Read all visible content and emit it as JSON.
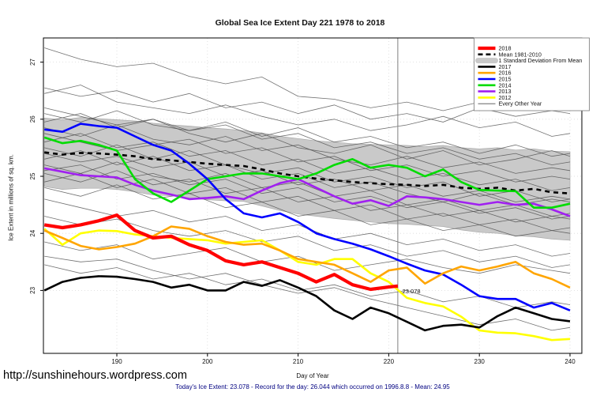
{
  "page": {
    "title": "Global Sea Ice Extent Day 221 1978 to 2018",
    "url": "http://sunshinehours.wordpress.com",
    "footer_note": "Today's Ice Extent: 23.078  - Record for the day: 26.044 which occurred on 1996.8.8  - Mean: 24.95"
  },
  "chart_data": {
    "type": "line",
    "title": "Global Sea Ice Extent Day 221 1978 to 2018",
    "xlabel": "Day of Year",
    "ylabel": "Ice Extent in millions of sq. km.",
    "xlim": [
      182,
      241
    ],
    "ylim": [
      21.9,
      27.4
    ],
    "x_ticks": [
      190,
      200,
      210,
      220,
      230,
      240
    ],
    "y_ticks": [
      23,
      24,
      25,
      26,
      27
    ],
    "grid": true,
    "legend_position": "top-right",
    "vline_day": 221,
    "annotation": {
      "text": "23.078",
      "day": 221.5,
      "value": 22.95,
      "color": "#FF3300"
    },
    "days": [
      182,
      184,
      186,
      188,
      190,
      192,
      194,
      196,
      198,
      200,
      202,
      204,
      206,
      208,
      210,
      212,
      214,
      216,
      218,
      220,
      222,
      224,
      226,
      228,
      230,
      232,
      234,
      236,
      238,
      240
    ],
    "band": {
      "name": "1 Standard Deviation From Mean",
      "color": "#C9C9C9",
      "upper": [
        26.02,
        25.99,
        26.03,
        26.01,
        25.99,
        25.97,
        25.93,
        25.9,
        25.88,
        25.85,
        25.83,
        25.8,
        25.76,
        25.7,
        25.66,
        25.62,
        25.6,
        25.57,
        25.56,
        25.55,
        25.54,
        25.52,
        25.54,
        25.5,
        25.48,
        25.5,
        25.46,
        25.48,
        25.44,
        25.43
      ],
      "lower": [
        24.82,
        24.77,
        24.79,
        24.79,
        24.77,
        24.73,
        24.67,
        24.66,
        24.62,
        24.59,
        24.57,
        24.56,
        24.48,
        24.4,
        24.34,
        24.3,
        24.26,
        24.23,
        24.2,
        24.17,
        24.16,
        24.14,
        24.12,
        24.06,
        24.02,
        24.0,
        23.96,
        23.94,
        23.9,
        23.88
      ]
    },
    "mean": {
      "name": "Mean 1981-2010",
      "color": "#000000",
      "width": 2.6,
      "dash": "6,5",
      "values": [
        25.42,
        25.38,
        25.41,
        25.4,
        25.38,
        25.35,
        25.3,
        25.28,
        25.25,
        25.22,
        25.2,
        25.18,
        25.12,
        25.05,
        25.0,
        24.96,
        24.93,
        24.9,
        24.88,
        24.86,
        24.85,
        24.83,
        24.85,
        24.8,
        24.78,
        24.8,
        24.75,
        24.78,
        24.72,
        24.7
      ]
    },
    "series": [
      {
        "name": "2013",
        "color": "#A020F0",
        "width": 2.6,
        "values": [
          25.14,
          25.08,
          25.02,
          25.0,
          24.98,
          24.85,
          24.75,
          24.68,
          24.6,
          24.62,
          24.65,
          24.6,
          24.75,
          24.88,
          24.95,
          24.8,
          24.65,
          24.52,
          24.58,
          24.48,
          24.65,
          24.63,
          24.6,
          24.55,
          24.5,
          24.55,
          24.5,
          24.52,
          24.42,
          24.3
        ]
      },
      {
        "name": "2014",
        "color": "#00DC00",
        "width": 2.6,
        "values": [
          25.68,
          25.58,
          25.62,
          25.55,
          25.45,
          24.95,
          24.7,
          24.55,
          24.75,
          24.95,
          25.0,
          25.05,
          25.05,
          25.0,
          24.95,
          25.05,
          25.2,
          25.3,
          25.15,
          25.2,
          25.15,
          25.0,
          25.12,
          24.9,
          24.76,
          24.75,
          24.74,
          24.45,
          24.45,
          24.52
        ]
      },
      {
        "name": "2015",
        "color": "#0000FF",
        "width": 2.6,
        "values": [
          25.82,
          25.78,
          25.92,
          25.88,
          25.85,
          25.7,
          25.55,
          25.45,
          25.22,
          24.95,
          24.6,
          24.35,
          24.28,
          24.35,
          24.2,
          24.0,
          23.9,
          23.82,
          23.72,
          23.6,
          23.47,
          23.35,
          23.28,
          23.1,
          22.9,
          22.85,
          22.85,
          22.7,
          22.78,
          22.65
        ]
      },
      {
        "name": "2012",
        "color": "#FFFF00",
        "width": 2.6,
        "values": [
          24.08,
          23.8,
          24.0,
          24.05,
          24.04,
          23.98,
          23.95,
          23.92,
          23.9,
          23.88,
          23.82,
          23.85,
          23.88,
          23.7,
          23.5,
          23.45,
          23.55,
          23.55,
          23.3,
          23.15,
          22.87,
          22.78,
          22.72,
          22.54,
          22.3,
          22.26,
          22.25,
          22.2,
          22.13,
          22.15
        ]
      },
      {
        "name": "2016",
        "color": "#FFA500",
        "width": 2.6,
        "values": [
          24.05,
          23.92,
          23.78,
          23.72,
          23.76,
          23.82,
          23.95,
          24.12,
          24.08,
          23.95,
          23.85,
          23.8,
          23.82,
          23.7,
          23.55,
          23.5,
          23.45,
          23.3,
          23.15,
          23.35,
          23.4,
          23.12,
          23.3,
          23.42,
          23.35,
          23.42,
          23.5,
          23.3,
          23.2,
          23.05
        ]
      },
      {
        "name": "2017",
        "color": "#000000",
        "width": 2.6,
        "values": [
          23.0,
          23.15,
          23.22,
          23.25,
          23.24,
          23.2,
          23.15,
          23.05,
          23.1,
          23.0,
          23.0,
          23.15,
          23.08,
          23.18,
          23.05,
          22.9,
          22.65,
          22.5,
          22.7,
          22.6,
          22.45,
          22.3,
          22.38,
          22.4,
          22.35,
          22.55,
          22.7,
          22.6,
          22.5,
          22.46
        ]
      },
      {
        "name": "2018",
        "color": "#FF0000",
        "width": 4.2,
        "x": [
          182,
          184,
          186,
          188,
          190,
          192,
          194,
          196,
          198,
          200,
          202,
          204,
          206,
          208,
          210,
          212,
          214,
          216,
          218,
          220,
          221
        ],
        "values": [
          24.15,
          24.1,
          24.15,
          24.22,
          24.32,
          24.05,
          23.92,
          23.95,
          23.8,
          23.7,
          23.52,
          23.45,
          23.5,
          23.4,
          23.3,
          23.15,
          23.28,
          23.1,
          23.02,
          23.06,
          23.078
        ]
      }
    ],
    "other_years": {
      "name": "Every Other Year",
      "color": "#4d4d4d",
      "width": 0.8,
      "x": [
        182,
        186,
        190,
        194,
        198,
        202,
        206,
        210,
        214,
        218,
        222,
        226,
        230,
        234,
        238,
        240
      ],
      "lines": [
        [
          27.25,
          27.05,
          26.92,
          26.98,
          26.75,
          26.62,
          26.74,
          26.4,
          26.35,
          26.2,
          26.3,
          26.15,
          26.3,
          26.2,
          26.45,
          26.4
        ],
        [
          26.55,
          26.4,
          26.5,
          26.3,
          26.45,
          26.2,
          26.3,
          26.1,
          26.25,
          26.0,
          26.1,
          25.95,
          26.2,
          26.05,
          26.15,
          26.1
        ],
        [
          26.45,
          26.6,
          26.3,
          26.2,
          26.1,
          26.25,
          26.05,
          25.9,
          26.0,
          25.8,
          25.9,
          26.05,
          25.85,
          25.95,
          25.7,
          25.75
        ],
        [
          26.2,
          26.05,
          25.9,
          26.0,
          25.8,
          25.9,
          25.65,
          25.75,
          25.5,
          25.6,
          25.4,
          25.5,
          25.3,
          25.4,
          25.2,
          25.25
        ],
        [
          26.1,
          25.95,
          26.15,
          25.9,
          25.8,
          25.95,
          25.7,
          25.85,
          25.6,
          25.7,
          25.5,
          25.6,
          25.4,
          25.55,
          25.35,
          25.4
        ],
        [
          25.95,
          26.1,
          25.85,
          26.0,
          25.75,
          25.6,
          25.75,
          25.5,
          25.4,
          25.55,
          25.3,
          25.45,
          25.2,
          25.3,
          25.45,
          25.35
        ],
        [
          25.85,
          25.7,
          25.9,
          25.65,
          25.55,
          25.7,
          25.45,
          25.55,
          25.3,
          25.2,
          25.35,
          25.15,
          25.25,
          25.05,
          25.15,
          25.1
        ],
        [
          25.75,
          25.6,
          25.45,
          25.55,
          25.65,
          25.4,
          25.5,
          25.25,
          25.35,
          25.1,
          25.2,
          25.0,
          25.1,
          24.9,
          25.0,
          24.95
        ],
        [
          25.6,
          25.75,
          25.5,
          25.6,
          25.35,
          25.45,
          25.2,
          25.3,
          25.05,
          25.15,
          24.95,
          25.05,
          24.85,
          24.95,
          24.75,
          24.8
        ],
        [
          25.5,
          25.35,
          25.55,
          25.3,
          25.45,
          25.2,
          25.05,
          25.15,
          24.9,
          25.0,
          24.8,
          24.9,
          24.65,
          24.75,
          24.55,
          24.6
        ],
        [
          25.4,
          25.25,
          25.35,
          25.15,
          25.25,
          25.0,
          25.1,
          24.85,
          24.95,
          24.75,
          24.85,
          24.65,
          24.75,
          24.55,
          24.65,
          24.6
        ],
        [
          25.3,
          25.45,
          25.2,
          25.35,
          25.1,
          25.2,
          24.95,
          25.05,
          24.8,
          24.9,
          24.7,
          24.55,
          24.7,
          24.5,
          24.6,
          24.55
        ],
        [
          25.2,
          25.05,
          25.25,
          25.0,
          24.9,
          25.05,
          24.8,
          24.9,
          24.65,
          24.75,
          24.5,
          24.6,
          24.4,
          24.5,
          24.3,
          24.35
        ],
        [
          25.1,
          25.2,
          24.95,
          25.05,
          24.85,
          24.95,
          24.7,
          24.8,
          24.55,
          24.65,
          24.45,
          24.55,
          24.35,
          24.45,
          24.25,
          24.3
        ],
        [
          25.05,
          24.9,
          25.1,
          24.85,
          24.95,
          24.7,
          24.8,
          24.55,
          24.65,
          24.4,
          24.5,
          24.3,
          24.4,
          24.2,
          24.3,
          24.25
        ],
        [
          24.9,
          25.05,
          24.8,
          24.95,
          24.7,
          24.8,
          24.55,
          24.65,
          24.4,
          24.5,
          24.25,
          24.35,
          24.15,
          24.25,
          24.05,
          24.1
        ],
        [
          24.8,
          24.65,
          24.85,
          24.6,
          24.7,
          24.45,
          24.55,
          24.3,
          24.4,
          24.15,
          24.25,
          24.05,
          24.15,
          23.95,
          24.05,
          24.0
        ],
        [
          24.6,
          24.45,
          24.3,
          24.4,
          24.2,
          24.3,
          24.05,
          24.15,
          23.9,
          24.0,
          23.8,
          23.9,
          23.7,
          23.8,
          23.6,
          23.65
        ],
        [
          24.3,
          24.15,
          24.25,
          24.05,
          23.95,
          24.05,
          23.85,
          23.95,
          23.7,
          23.8,
          23.6,
          23.7,
          23.5,
          23.6,
          23.4,
          23.45
        ],
        [
          23.85,
          23.7,
          23.8,
          23.55,
          23.65,
          23.75,
          23.5,
          23.6,
          23.35,
          23.45,
          23.55,
          23.4,
          23.3,
          23.45,
          23.35,
          23.3
        ],
        [
          23.6,
          23.5,
          23.55,
          23.35,
          23.2,
          23.3,
          23.1,
          22.95,
          23.05,
          22.85,
          22.7,
          22.55,
          22.4,
          22.5,
          22.3,
          22.35
        ],
        [
          23.45,
          23.3,
          23.4,
          23.2,
          23.3,
          23.1,
          23.2,
          23.0,
          23.1,
          22.9,
          23.0,
          22.8,
          22.9,
          22.7,
          22.8,
          22.75
        ]
      ]
    },
    "legend": [
      {
        "label": "2018",
        "color": "#FF0000",
        "width": 4.2,
        "dash": ""
      },
      {
        "label": "Mean 1981-2010",
        "color": "#000000",
        "width": 2.6,
        "dash": "6,4"
      },
      {
        "label": "1 Standard Deviation From Mean",
        "color": "#C9C9C9",
        "width": 7,
        "dash": ""
      },
      {
        "label": "2017",
        "color": "#000000",
        "width": 2.6,
        "dash": ""
      },
      {
        "label": "2016",
        "color": "#FFA500",
        "width": 2.6,
        "dash": ""
      },
      {
        "label": "2015",
        "color": "#0000FF",
        "width": 2.6,
        "dash": ""
      },
      {
        "label": "2014",
        "color": "#00DC00",
        "width": 2.6,
        "dash": ""
      },
      {
        "label": "2013",
        "color": "#A020F0",
        "width": 2.6,
        "dash": ""
      },
      {
        "label": "2012",
        "color": "#FFFF00",
        "width": 2.6,
        "dash": ""
      },
      {
        "label": "Every Other Year",
        "color": "#4d4d4d",
        "width": 0.8,
        "dash": ""
      }
    ]
  }
}
